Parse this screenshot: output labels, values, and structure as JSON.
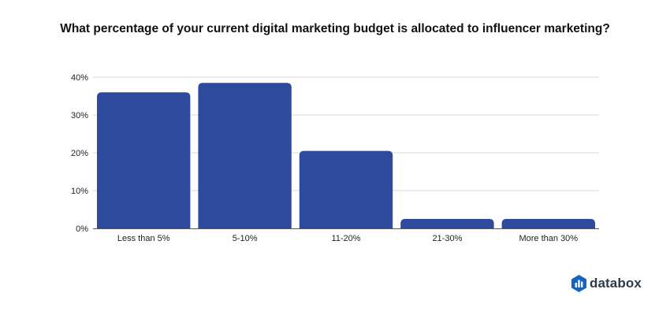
{
  "chart_data": {
    "type": "bar",
    "title": "What percentage of your current digital marketing budget is allocated to influencer marketing?",
    "xlabel": "",
    "ylabel": "",
    "categories": [
      "Less than 5%",
      "5-10%",
      "11-20%",
      "21-30%",
      "More than 30%"
    ],
    "values": [
      36,
      38.5,
      20.5,
      2.5,
      2.5
    ],
    "ylim": [
      0,
      40
    ],
    "yticks": [
      "0%",
      "10%",
      "20%",
      "30%",
      "40%"
    ],
    "grid": true,
    "legend": "none",
    "colors": {
      "bar": "#2e4a9c",
      "grid": "#d9d9d9",
      "axis": "#555555"
    }
  },
  "brand": {
    "name": "databox",
    "color": "#2d3a4b",
    "logo_icon": "databox-logo-icon",
    "logo_colors": [
      "#1e88e5",
      "#42a5f5",
      "#0d47a1"
    ]
  }
}
